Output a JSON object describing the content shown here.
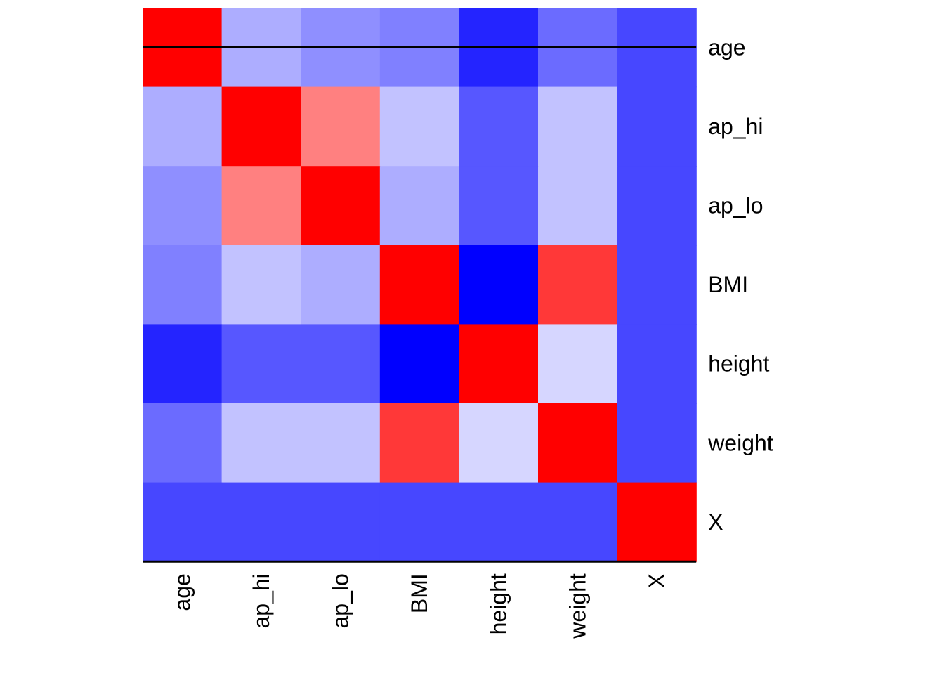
{
  "chart_data": {
    "type": "heatmap",
    "title": "",
    "xlabel": "",
    "ylabel": "",
    "row_labels": [
      "age",
      "ap_hi",
      "ap_lo",
      "BMI",
      "height",
      "weight",
      "X"
    ],
    "col_labels": [
      "age",
      "ap_hi",
      "ap_lo",
      "BMI",
      "height",
      "weight",
      "X"
    ],
    "color_scale": {
      "low": "#0000FF",
      "mid": "#FFFFFF",
      "high": "#FF0000",
      "range": [
        -1,
        1
      ]
    },
    "values": [
      [
        1.0,
        -0.32,
        -0.44,
        -0.5,
        -0.86,
        -0.58,
        -0.72
      ],
      [
        -0.32,
        1.0,
        0.5,
        -0.24,
        -0.66,
        -0.24,
        -0.72
      ],
      [
        -0.44,
        0.5,
        1.0,
        -0.32,
        -0.66,
        -0.24,
        -0.72
      ],
      [
        -0.5,
        -0.24,
        -0.32,
        1.0,
        -1.0,
        0.78,
        -0.72
      ],
      [
        -0.86,
        -0.66,
        -0.66,
        -1.0,
        1.0,
        -0.16,
        -0.72
      ],
      [
        -0.58,
        -0.24,
        -0.24,
        0.78,
        -0.16,
        1.0,
        -0.72
      ],
      [
        -0.72,
        -0.72,
        -0.72,
        -0.72,
        -0.72,
        -0.72,
        1.0
      ]
    ],
    "dendrogram": true,
    "grid": false,
    "legend": "none"
  }
}
